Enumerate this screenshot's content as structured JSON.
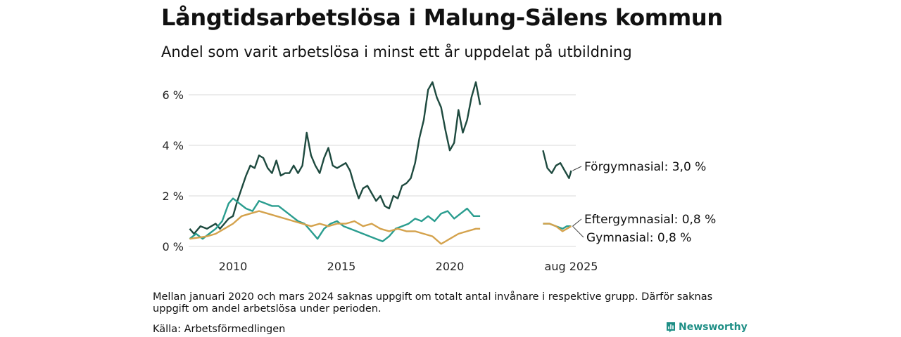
{
  "title": "Långtidsarbetslösa i Malung-Sälens kommun",
  "subtitle": "Andel som varit arbetslösa i minst ett år uppdelat på utbildning",
  "footnote": "Mellan januari 2020 och mars 2024 saknas uppgift om totalt antal invånare i respektive grupp. Därför saknas uppgift om andel arbetslösa under perioden.",
  "source": "Källa: Arbetsförmedlingen",
  "brand": {
    "name": "Newsworthy",
    "icon": "newsworthy-logo-icon",
    "color": "#1f8f86"
  },
  "chart_data": {
    "type": "line",
    "y_ticks": [
      {
        "value": 0,
        "label": "0 %"
      },
      {
        "value": 2,
        "label": "2 %"
      },
      {
        "value": 4,
        "label": "4 %"
      },
      {
        "value": 6,
        "label": "6 %"
      }
    ],
    "x_ticks": [
      {
        "value": 2010,
        "label": "2010"
      },
      {
        "value": 2015,
        "label": "2015"
      },
      {
        "value": 2020,
        "label": "2020"
      },
      {
        "value": 2025.6,
        "label": "aug 2025"
      }
    ],
    "ylim": [
      0,
      6.5
    ],
    "xlim": [
      2008,
      2026.5
    ],
    "unit": "%",
    "grid": "horizontal",
    "series": [
      {
        "name": "Förgymnasial",
        "end_label": "Förgymnasial: 3,0 %",
        "color": "#1e4a3f",
        "segments": [
          [
            [
              2008.0,
              0.7
            ],
            [
              2008.2,
              0.5
            ],
            [
              2008.5,
              0.8
            ],
            [
              2008.8,
              0.7
            ],
            [
              2009.0,
              0.8
            ],
            [
              2009.2,
              0.9
            ],
            [
              2009.4,
              0.7
            ],
            [
              2009.6,
              0.9
            ],
            [
              2009.8,
              1.1
            ],
            [
              2010.0,
              1.2
            ],
            [
              2010.2,
              1.8
            ],
            [
              2010.4,
              2.3
            ],
            [
              2010.6,
              2.8
            ],
            [
              2010.8,
              3.2
            ],
            [
              2011.0,
              3.1
            ],
            [
              2011.2,
              3.6
            ],
            [
              2011.4,
              3.5
            ],
            [
              2011.6,
              3.1
            ],
            [
              2011.8,
              2.9
            ],
            [
              2012.0,
              3.4
            ],
            [
              2012.2,
              2.8
            ],
            [
              2012.4,
              2.9
            ],
            [
              2012.6,
              2.9
            ],
            [
              2012.8,
              3.2
            ],
            [
              2013.0,
              2.9
            ],
            [
              2013.2,
              3.2
            ],
            [
              2013.4,
              4.5
            ],
            [
              2013.6,
              3.6
            ],
            [
              2013.8,
              3.2
            ],
            [
              2014.0,
              2.9
            ],
            [
              2014.2,
              3.5
            ],
            [
              2014.4,
              3.9
            ],
            [
              2014.6,
              3.2
            ],
            [
              2014.8,
              3.1
            ],
            [
              2015.0,
              3.2
            ],
            [
              2015.2,
              3.3
            ],
            [
              2015.4,
              3.0
            ],
            [
              2015.6,
              2.4
            ],
            [
              2015.8,
              1.9
            ],
            [
              2016.0,
              2.3
            ],
            [
              2016.2,
              2.4
            ],
            [
              2016.4,
              2.1
            ],
            [
              2016.6,
              1.8
            ],
            [
              2016.8,
              2.0
            ],
            [
              2017.0,
              1.6
            ],
            [
              2017.2,
              1.5
            ],
            [
              2017.4,
              2.0
            ],
            [
              2017.6,
              1.9
            ],
            [
              2017.8,
              2.4
            ],
            [
              2018.0,
              2.5
            ],
            [
              2018.2,
              2.7
            ],
            [
              2018.4,
              3.3
            ],
            [
              2018.6,
              4.3
            ],
            [
              2018.8,
              5.0
            ],
            [
              2019.0,
              6.2
            ],
            [
              2019.2,
              6.5
            ],
            [
              2019.4,
              5.9
            ],
            [
              2019.6,
              5.5
            ],
            [
              2019.8,
              4.6
            ],
            [
              2020.0,
              3.8
            ],
            [
              2020.2,
              4.1
            ],
            [
              2020.4,
              5.4
            ],
            [
              2020.6,
              4.5
            ],
            [
              2020.8,
              5.0
            ],
            [
              2021.0,
              5.9
            ],
            [
              2021.2,
              6.5
            ],
            [
              2021.4,
              5.6
            ]
          ],
          [
            [
              2024.3,
              3.8
            ],
            [
              2024.5,
              3.1
            ],
            [
              2024.7,
              2.9
            ],
            [
              2024.9,
              3.2
            ],
            [
              2025.1,
              3.3
            ],
            [
              2025.3,
              3.0
            ],
            [
              2025.5,
              2.7
            ],
            [
              2025.6,
              3.0
            ]
          ]
        ]
      },
      {
        "name": "Eftergymnasial",
        "end_label": "Eftergymnasial: 0,8 %",
        "color": "#2a9d8f",
        "segments": [
          [
            [
              2008.0,
              0.3
            ],
            [
              2008.3,
              0.5
            ],
            [
              2008.6,
              0.3
            ],
            [
              2008.9,
              0.5
            ],
            [
              2009.2,
              0.7
            ],
            [
              2009.5,
              1.0
            ],
            [
              2009.8,
              1.7
            ],
            [
              2010.0,
              1.9
            ],
            [
              2010.3,
              1.7
            ],
            [
              2010.6,
              1.5
            ],
            [
              2010.9,
              1.4
            ],
            [
              2011.2,
              1.8
            ],
            [
              2011.5,
              1.7
            ],
            [
              2011.8,
              1.6
            ],
            [
              2012.1,
              1.6
            ],
            [
              2012.4,
              1.4
            ],
            [
              2012.7,
              1.2
            ],
            [
              2013.0,
              1.0
            ],
            [
              2013.3,
              0.9
            ],
            [
              2013.6,
              0.6
            ],
            [
              2013.9,
              0.3
            ],
            [
              2014.2,
              0.7
            ],
            [
              2014.5,
              0.9
            ],
            [
              2014.8,
              1.0
            ],
            [
              2015.1,
              0.8
            ],
            [
              2015.4,
              0.7
            ],
            [
              2015.7,
              0.6
            ],
            [
              2016.0,
              0.5
            ],
            [
              2016.3,
              0.4
            ],
            [
              2016.6,
              0.3
            ],
            [
              2016.9,
              0.2
            ],
            [
              2017.2,
              0.4
            ],
            [
              2017.5,
              0.7
            ],
            [
              2017.8,
              0.8
            ],
            [
              2018.1,
              0.9
            ],
            [
              2018.4,
              1.1
            ],
            [
              2018.7,
              1.0
            ],
            [
              2019.0,
              1.2
            ],
            [
              2019.3,
              1.0
            ],
            [
              2019.6,
              1.3
            ],
            [
              2019.9,
              1.4
            ],
            [
              2020.2,
              1.1
            ],
            [
              2020.5,
              1.3
            ],
            [
              2020.8,
              1.5
            ],
            [
              2021.1,
              1.2
            ],
            [
              2021.4,
              1.2
            ]
          ],
          [
            [
              2024.3,
              0.9
            ],
            [
              2024.6,
              0.9
            ],
            [
              2024.9,
              0.8
            ],
            [
              2025.2,
              0.7
            ],
            [
              2025.4,
              0.8
            ],
            [
              2025.6,
              0.8
            ]
          ]
        ]
      },
      {
        "name": "Gymnasial",
        "end_label": "Gymnasial: 0,8 %",
        "color": "#d4a24c",
        "segments": [
          [
            [
              2008.0,
              0.3
            ],
            [
              2008.4,
              0.35
            ],
            [
              2008.8,
              0.4
            ],
            [
              2009.2,
              0.5
            ],
            [
              2009.6,
              0.7
            ],
            [
              2010.0,
              0.9
            ],
            [
              2010.4,
              1.2
            ],
            [
              2010.8,
              1.3
            ],
            [
              2011.2,
              1.4
            ],
            [
              2011.6,
              1.3
            ],
            [
              2012.0,
              1.2
            ],
            [
              2012.4,
              1.1
            ],
            [
              2012.8,
              1.0
            ],
            [
              2013.2,
              0.9
            ],
            [
              2013.6,
              0.8
            ],
            [
              2014.0,
              0.9
            ],
            [
              2014.4,
              0.8
            ],
            [
              2014.8,
              0.9
            ],
            [
              2015.2,
              0.9
            ],
            [
              2015.6,
              1.0
            ],
            [
              2016.0,
              0.8
            ],
            [
              2016.4,
              0.9
            ],
            [
              2016.8,
              0.7
            ],
            [
              2017.2,
              0.6
            ],
            [
              2017.6,
              0.7
            ],
            [
              2018.0,
              0.6
            ],
            [
              2018.4,
              0.6
            ],
            [
              2018.8,
              0.5
            ],
            [
              2019.2,
              0.4
            ],
            [
              2019.6,
              0.1
            ],
            [
              2020.0,
              0.3
            ],
            [
              2020.4,
              0.5
            ],
            [
              2020.8,
              0.6
            ],
            [
              2021.2,
              0.7
            ],
            [
              2021.4,
              0.7
            ]
          ],
          [
            [
              2024.3,
              0.9
            ],
            [
              2024.6,
              0.9
            ],
            [
              2024.9,
              0.8
            ],
            [
              2025.2,
              0.6
            ],
            [
              2025.4,
              0.7
            ],
            [
              2025.6,
              0.8
            ]
          ]
        ]
      }
    ]
  }
}
